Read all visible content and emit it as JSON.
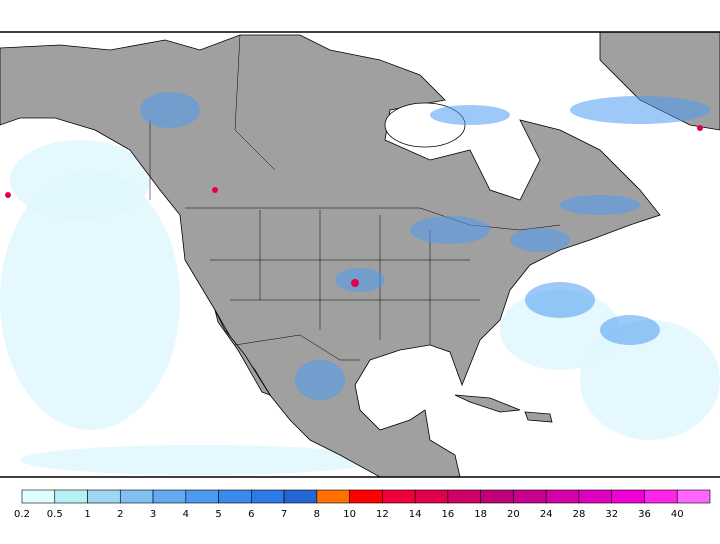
{
  "legend": {
    "labels": [
      0.2,
      0.5,
      1,
      2,
      3,
      4,
      5,
      6,
      7,
      8,
      10,
      12,
      14,
      16,
      18,
      20,
      24,
      28,
      32,
      36,
      40
    ],
    "colors": [
      "#e0ffff",
      "#b4f0f4",
      "#9ed6f4",
      "#80c0f2",
      "#64aaf0",
      "#4c9af0",
      "#3a8aee",
      "#2e7ae6",
      "#2466d4",
      "#ff7000",
      "#ff0000",
      "#f0003a",
      "#e00050",
      "#d00064",
      "#c00078",
      "#c8008e",
      "#d400a8",
      "#e000c0",
      "#f000d6",
      "#ff24ea",
      "#ff66ff"
    ]
  }
}
